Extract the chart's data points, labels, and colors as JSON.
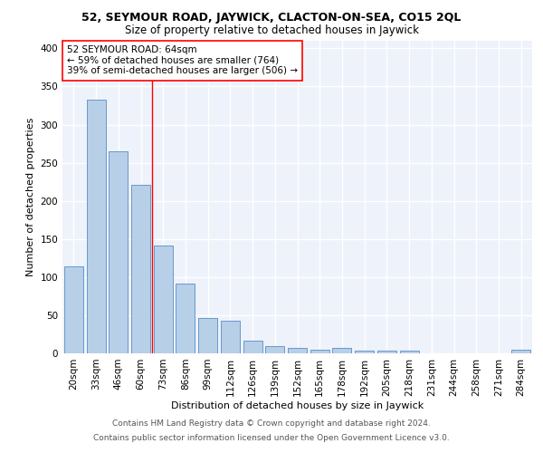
{
  "title1": "52, SEYMOUR ROAD, JAYWICK, CLACTON-ON-SEA, CO15 2QL",
  "title2": "Size of property relative to detached houses in Jaywick",
  "xlabel": "Distribution of detached houses by size in Jaywick",
  "ylabel": "Number of detached properties",
  "categories": [
    "20sqm",
    "33sqm",
    "46sqm",
    "60sqm",
    "73sqm",
    "86sqm",
    "99sqm",
    "112sqm",
    "126sqm",
    "139sqm",
    "152sqm",
    "165sqm",
    "178sqm",
    "192sqm",
    "205sqm",
    "218sqm",
    "231sqm",
    "244sqm",
    "258sqm",
    "271sqm",
    "284sqm"
  ],
  "values": [
    114,
    333,
    265,
    221,
    141,
    91,
    46,
    43,
    17,
    10,
    7,
    5,
    7,
    4,
    3,
    4,
    0,
    0,
    0,
    0,
    5
  ],
  "bar_color": "#b8cfe8",
  "bar_edge_color": "#6699cc",
  "vline_x": 3.5,
  "vline_color": "red",
  "annotation_text": "52 SEYMOUR ROAD: 64sqm\n← 59% of detached houses are smaller (764)\n39% of semi-detached houses are larger (506) →",
  "annotation_box_color": "white",
  "annotation_box_edge_color": "red",
  "ylim": [
    0,
    410
  ],
  "yticks": [
    0,
    50,
    100,
    150,
    200,
    250,
    300,
    350,
    400
  ],
  "footer1": "Contains HM Land Registry data © Crown copyright and database right 2024.",
  "footer2": "Contains public sector information licensed under the Open Government Licence v3.0.",
  "background_color": "#eef2fa",
  "grid_color": "white",
  "title1_fontsize": 9,
  "title2_fontsize": 8.5,
  "xlabel_fontsize": 8,
  "ylabel_fontsize": 8,
  "annotation_fontsize": 7.5,
  "tick_fontsize": 7.5,
  "footer_fontsize": 6.5
}
